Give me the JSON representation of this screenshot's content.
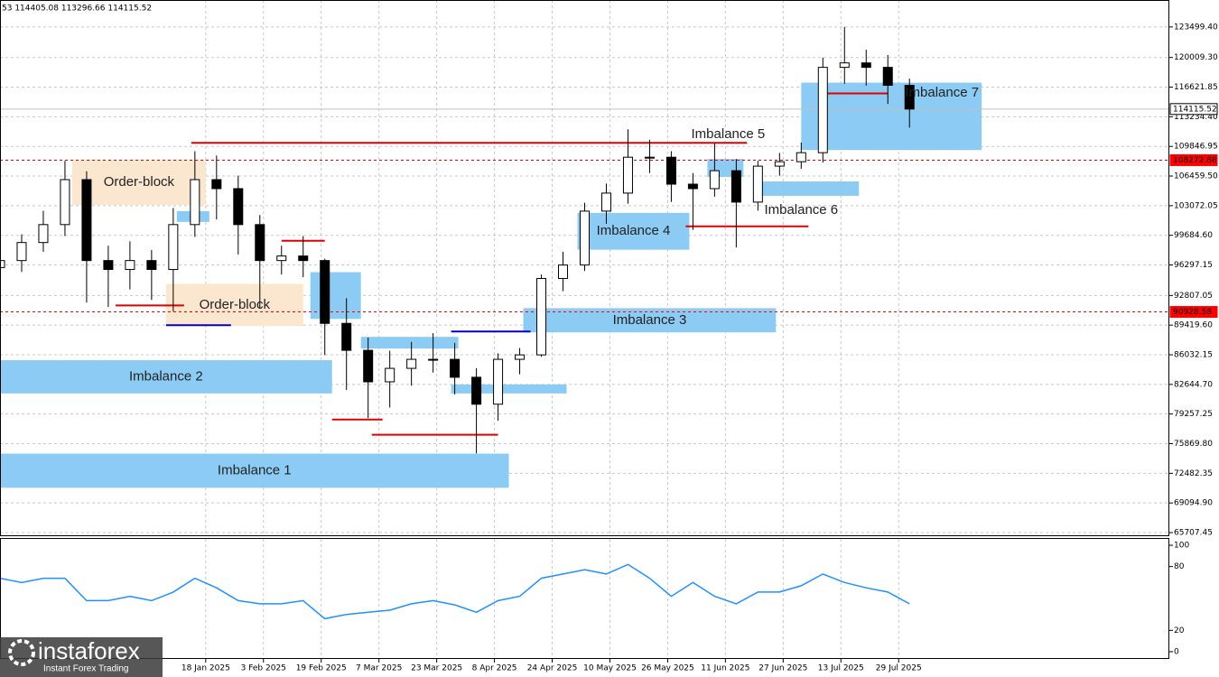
{
  "chart_data": [
    {
      "type": "candlestick",
      "header": "53 114405.08 113296.66 114115.52",
      "color": "#000000",
      "x": [
        "2024-11-22",
        "2024-11-28",
        "2024-12-04",
        "2024-12-10",
        "2024-12-16",
        "2024-12-22",
        "2024-12-28",
        "2025-01-03",
        "2025-01-09",
        "2025-01-15",
        "2025-01-21",
        "2025-01-27",
        "2025-02-02",
        "2025-02-08",
        "2025-02-14",
        "2025-02-20",
        "2025-02-26",
        "2025-03-04",
        "2025-03-10",
        "2025-03-16",
        "2025-03-22",
        "2025-03-28",
        "2025-04-03",
        "2025-04-09",
        "2025-04-15",
        "2025-04-21",
        "2025-04-27",
        "2025-05-03",
        "2025-05-09",
        "2025-05-15",
        "2025-05-21",
        "2025-05-27",
        "2025-06-02",
        "2025-06-08",
        "2025-06-14",
        "2025-06-20",
        "2025-06-26",
        "2025-07-02",
        "2025-07-08",
        "2025-07-14",
        "2025-07-20",
        "2025-07-26",
        "2025-08-01"
      ],
      "open": [
        96000,
        96800,
        98860,
        100910,
        106050,
        96800,
        95780,
        96800,
        95780,
        100910,
        106050,
        105020,
        100910,
        96800,
        97320,
        96800,
        89620,
        86540,
        82940,
        84480,
        85510,
        85510,
        83460,
        80380,
        85510,
        86020,
        94750,
        96290,
        102450,
        104510,
        108610,
        108610,
        105530,
        105020,
        107070,
        103480,
        107590,
        108100,
        109130,
        118880,
        119390,
        118880,
        116830
      ],
      "high": [
        98500,
        99800,
        102500,
        108200,
        107000,
        98500,
        99000,
        98000,
        102800,
        109300,
        108800,
        106500,
        102000,
        98500,
        99600,
        97000,
        92500,
        88000,
        86500,
        87500,
        88500,
        87400,
        84500,
        86200,
        86800,
        95200,
        97800,
        103400,
        105600,
        111800,
        110600,
        109300,
        106800,
        110200,
        108400,
        108200,
        109100,
        110300,
        120000,
        123499,
        120900,
        120300,
        117600
      ],
      "low": [
        94500,
        95500,
        97800,
        99600,
        92000,
        91500,
        93500,
        92300,
        91000,
        99500,
        101500,
        97500,
        91300,
        95200,
        94900,
        86000,
        82000,
        78800,
        80000,
        82500,
        84000,
        81500,
        74760,
        78500,
        83800,
        85800,
        93300,
        95600,
        101000,
        103300,
        106800,
        103500,
        100300,
        104100,
        98300,
        102500,
        106500,
        107300,
        108000,
        117000,
        116800,
        114700,
        112000
      ],
      "close": [
        96800,
        98860,
        100910,
        106050,
        96800,
        95780,
        96800,
        95780,
        100910,
        106050,
        105020,
        100910,
        96800,
        97320,
        96800,
        89620,
        86540,
        82940,
        84480,
        85510,
        85510,
        83460,
        80380,
        85510,
        86020,
        94750,
        96290,
        102450,
        104510,
        108610,
        108610,
        105530,
        105020,
        107070,
        103480,
        107590,
        108100,
        109130,
        118880,
        119390,
        118880,
        116830,
        114115.52
      ],
      "xlim": [
        "2024-11-22",
        "2025-10-12"
      ],
      "xticks": [
        {
          "value": "2025-01-18",
          "label": "18 Jan 2025"
        },
        {
          "value": "2025-02-03",
          "label": "3 Feb 2025"
        },
        {
          "value": "2025-02-19",
          "label": "19 Feb 2025"
        },
        {
          "value": "2025-03-07",
          "label": "7 Mar 2025"
        },
        {
          "value": "2025-03-23",
          "label": "23 Mar 2025"
        },
        {
          "value": "2025-04-08",
          "label": "8 Apr 2025"
        },
        {
          "value": "2025-04-24",
          "label": "24 Apr 2025"
        },
        {
          "value": "2025-05-10",
          "label": "10 May 2025"
        },
        {
          "value": "2025-05-26",
          "label": "26 May 2025"
        },
        {
          "value": "2025-06-11",
          "label": "11 Jun 2025"
        },
        {
          "value": "2025-06-27",
          "label": "27 Jun 2025"
        },
        {
          "value": "2025-07-13",
          "label": "13 Jul 2025"
        },
        {
          "value": "2025-07-29",
          "label": "29 Jul 2025"
        }
      ],
      "ylim": [
        65400,
        126580
      ],
      "yticks": [
        {
          "value": 123499.4,
          "label": "123499.40"
        },
        {
          "value": 120009.3,
          "label": "120009.30"
        },
        116621.85,
        {
          "value": 113234.4,
          "label": "113234.40"
        },
        109846.95,
        {
          "value": 106459.5,
          "label": "106459.50"
        },
        103072.05,
        {
          "value": 99684.6,
          "label": "99684.60"
        },
        96297.15,
        92807.05,
        {
          "value": 89419.6,
          "label": "89419.60"
        },
        86032.15,
        {
          "value": 82644.7,
          "label": "82644.70"
        },
        79257.25,
        {
          "value": 75869.8,
          "label": "75869.80"
        },
        72482.35,
        {
          "value": 69094.9,
          "label": "69094.90"
        },
        65707.45
      ],
      "grid": true,
      "zones": [
        {
          "label": "Imbalance 1",
          "x": [
            "2024-11-22",
            "2025-04-12"
          ],
          "y": [
            70830,
            74730
          ],
          "color": "#8ccbf3"
        },
        {
          "label": "Imbalance 2",
          "x": [
            "2024-11-22",
            "2025-02-22"
          ],
          "y": [
            81610,
            85410
          ],
          "color": "#8ccbf3"
        },
        {
          "label": "Imbalance 3",
          "x": [
            "2025-04-16",
            "2025-06-25"
          ],
          "y": [
            88590,
            91360
          ],
          "color": "#8ccbf3"
        },
        {
          "label": "Imbalance 4",
          "x": [
            "2025-05-01",
            "2025-06-01"
          ],
          "y": [
            98040,
            102250
          ],
          "color": "#8ccbf3"
        },
        {
          "label": "Imbalance 5",
          "x": [
            "2025-06-06",
            "2025-06-16"
          ],
          "y": [
            106350,
            108410
          ],
          "color": "#8ccbf3"
        },
        {
          "label": "Imbalance 6",
          "x": [
            "2025-06-19",
            "2025-07-18"
          ],
          "y": [
            104200,
            105840
          ],
          "color": "#8ccbf3"
        },
        {
          "label": "Imbalance 7",
          "x": [
            "2025-07-02",
            "2025-08-21"
          ],
          "y": [
            109430,
            117130
          ],
          "color": "#8ccbf3"
        },
        {
          "label": "Order-block",
          "x": [
            "2024-12-12",
            "2025-01-18"
          ],
          "y": [
            103170,
            108300
          ],
          "color": "#fbe6d0"
        },
        {
          "label": "Order-block",
          "x": [
            "2025-01-07",
            "2025-02-14"
          ],
          "y": [
            89310,
            94140
          ],
          "color": "#fbe6d0"
        },
        {
          "x": [
            "2025-01-10",
            "2025-01-19"
          ],
          "y": [
            101220,
            102450
          ],
          "color": "#8ccbf3"
        },
        {
          "x": [
            "2025-03-02",
            "2025-03-29"
          ],
          "y": [
            86740,
            88080
          ],
          "color": "#8ccbf3"
        },
        {
          "x": [
            "2025-03-27",
            "2025-04-28"
          ],
          "y": [
            81610,
            82640
          ],
          "color": "#8ccbf3"
        },
        {
          "x": [
            "2025-02-16",
            "2025-03-02"
          ],
          "y": [
            90130,
            95470
          ],
          "color": "#8ccbf3"
        }
      ],
      "segments": [
        {
          "x": [
            "2025-01-14",
            "2025-06-17"
          ],
          "value": 110255,
          "color": "#e00000"
        },
        {
          "x": [
            "2024-12-24",
            "2025-01-12"
          ],
          "value": 91670,
          "color": "#e00000"
        },
        {
          "x": [
            "2025-01-07",
            "2025-01-25"
          ],
          "value": 89410,
          "color": "#0000cc"
        },
        {
          "x": [
            "2025-02-08",
            "2025-02-20"
          ],
          "value": 99060,
          "color": "#e00000"
        },
        {
          "x": [
            "2025-02-22",
            "2025-03-08"
          ],
          "value": 78630,
          "color": "#e00000"
        },
        {
          "x": [
            "2025-03-05",
            "2025-04-09"
          ],
          "value": 76890,
          "color": "#e00000"
        },
        {
          "x": [
            "2025-03-27",
            "2025-04-18"
          ],
          "value": 88690,
          "color": "#0000cc"
        },
        {
          "x": [
            "2025-05-31",
            "2025-07-04"
          ],
          "value": 100710,
          "color": "#e00000"
        },
        {
          "x": [
            "2025-07-09",
            "2025-07-26"
          ],
          "value": 115900,
          "color": "#e00000"
        }
      ],
      "levels": [
        {
          "value": 114115.52,
          "color": "#c0c0c0",
          "style": "solid"
        },
        {
          "value": 108272.88,
          "color": "#ff0000",
          "style": "dashed"
        },
        {
          "value": 90928.58,
          "color": "#ff0000",
          "style": "dashed"
        }
      ]
    },
    {
      "type": "line",
      "x": [
        "2024-11-22",
        "2024-11-28",
        "2024-12-04",
        "2024-12-10",
        "2024-12-16",
        "2024-12-22",
        "2024-12-28",
        "2025-01-03",
        "2025-01-09",
        "2025-01-15",
        "2025-01-21",
        "2025-01-27",
        "2025-02-02",
        "2025-02-08",
        "2025-02-14",
        "2025-02-20",
        "2025-02-26",
        "2025-03-04",
        "2025-03-10",
        "2025-03-16",
        "2025-03-22",
        "2025-03-28",
        "2025-04-03",
        "2025-04-09",
        "2025-04-15",
        "2025-04-21",
        "2025-04-27",
        "2025-05-03",
        "2025-05-09",
        "2025-05-15",
        "2025-05-21",
        "2025-05-27",
        "2025-06-02",
        "2025-06-08",
        "2025-06-14",
        "2025-06-20",
        "2025-06-26",
        "2025-07-02",
        "2025-07-08",
        "2025-07-14",
        "2025-07-20",
        "2025-07-26",
        "2025-08-01"
      ],
      "xlim": [
        "2024-11-22",
        "2025-10-12"
      ],
      "series": [
        {
          "color": "#1e90ff",
          "values": [
            69,
            65,
            69,
            69,
            48,
            48,
            52,
            48,
            56,
            69,
            60,
            48,
            45,
            45,
            48,
            31,
            35,
            37,
            39,
            45,
            48,
            44,
            37,
            48,
            52,
            69,
            73,
            77,
            73,
            82,
            69,
            52,
            65,
            52,
            45,
            56,
            56,
            62,
            73,
            65,
            60,
            56,
            45
          ]
        }
      ],
      "ylim": [
        -6,
        106
      ],
      "yticks": [
        0,
        20,
        80,
        100
      ]
    }
  ],
  "watermark": {
    "brand": "instaforex",
    "tagline": "Instant Forex Trading"
  }
}
